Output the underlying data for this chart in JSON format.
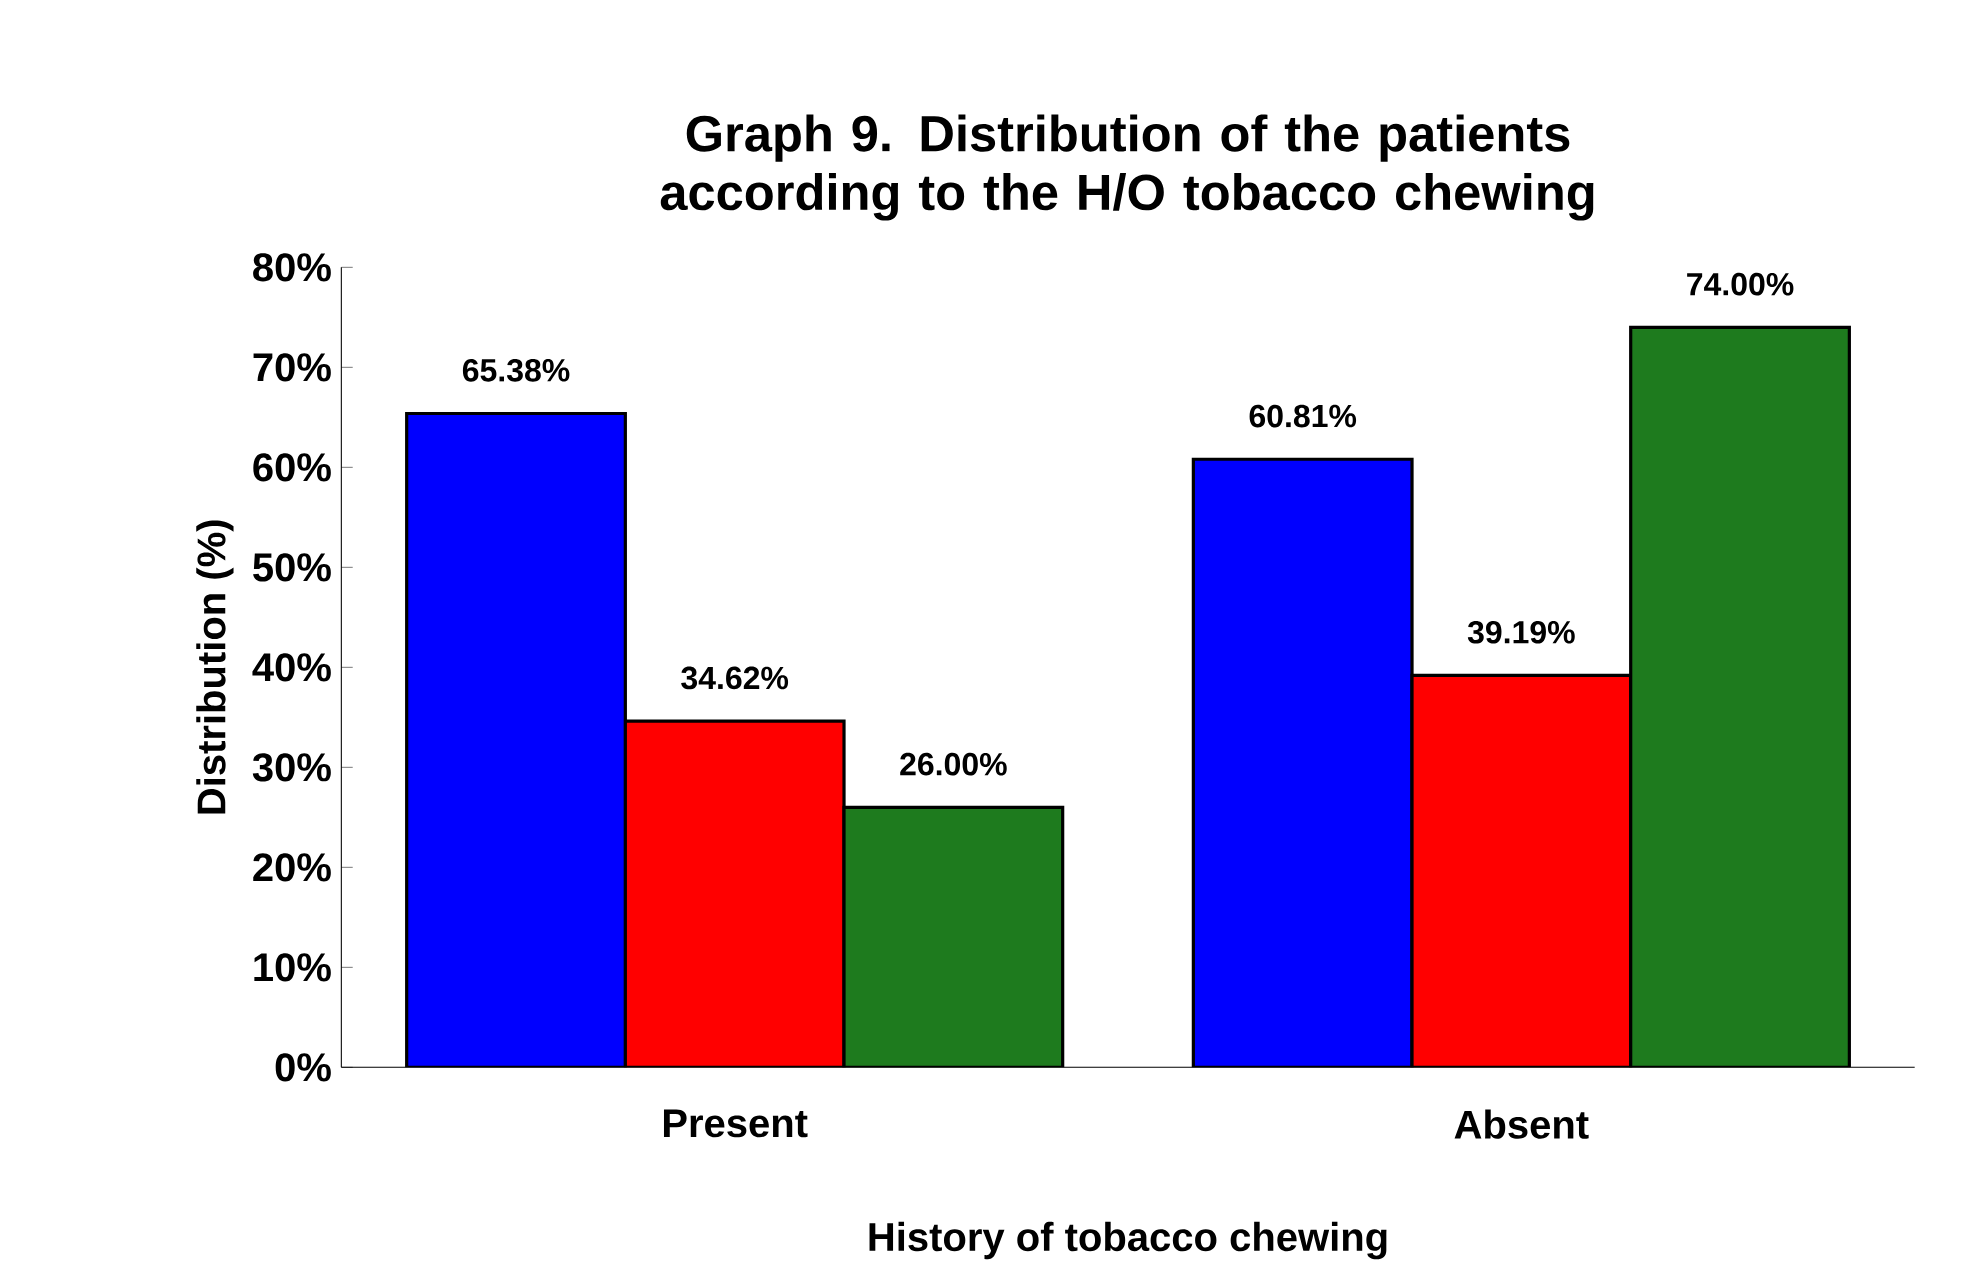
{
  "chart_data": {
    "type": "bar",
    "title": "Graph 9. Distribution of the patients according to the H/O tobacco chewing",
    "xlabel": "History of tobacco chewing",
    "ylabel": "Distribution (%)",
    "categories": [
      "Present",
      "Absent"
    ],
    "series": [
      {
        "color": "#0000ff",
        "values": [
          65.38,
          60.81
        ],
        "value_labels": [
          "65.38%",
          "60.81%"
        ]
      },
      {
        "color": "#ff0000",
        "values": [
          34.62,
          39.19
        ],
        "value_labels": [
          "34.62%",
          "39.19%"
        ]
      },
      {
        "color": "#1e7b1e",
        "values": [
          26.0,
          74.0
        ],
        "value_labels": [
          "26.00%",
          "74.00%"
        ]
      }
    ],
    "ylim": [
      0,
      80
    ],
    "yticks": [
      {
        "value": 0,
        "label": "0%"
      },
      {
        "value": 10,
        "label": "10%"
      },
      {
        "value": 20,
        "label": "20%"
      },
      {
        "value": 30,
        "label": "30%"
      },
      {
        "value": 40,
        "label": "40%"
      },
      {
        "value": 50,
        "label": "50%"
      },
      {
        "value": 60,
        "label": "60%"
      },
      {
        "value": 70,
        "label": "70%"
      },
      {
        "value": 80,
        "label": "80%"
      }
    ],
    "grid": false
  }
}
